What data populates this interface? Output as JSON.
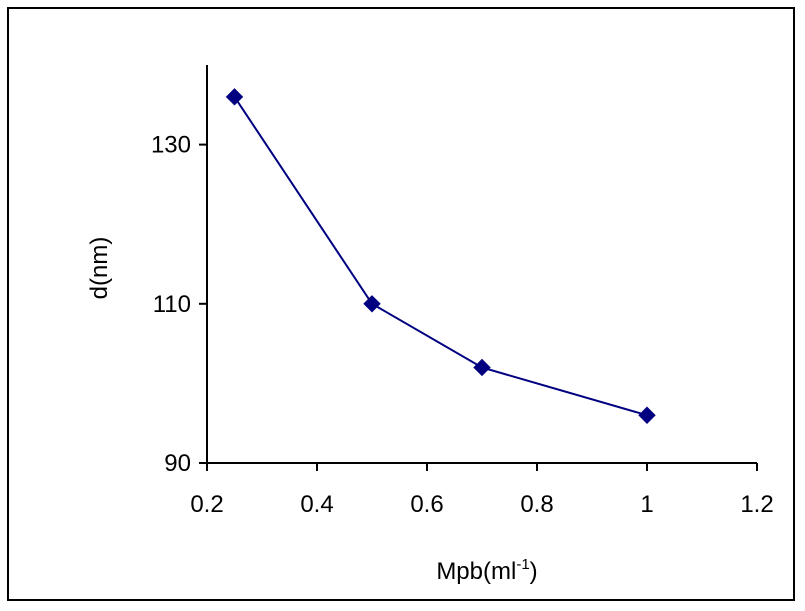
{
  "chart_data": {
    "type": "line",
    "xlabel": {
      "text": "Mpb(ml",
      "sup": "-1",
      "close": ")"
    },
    "ylabel": "d(nm)",
    "xlim": [
      0.2,
      1.2
    ],
    "ylim": [
      90,
      140
    ],
    "xticks": [
      {
        "value": 0.2,
        "label": "0.2"
      },
      {
        "value": 0.4,
        "label": "0.4"
      },
      {
        "value": 0.6,
        "label": "0.6"
      },
      {
        "value": 0.8,
        "label": "0.8"
      },
      {
        "value": 1.0,
        "label": "1"
      },
      {
        "value": 1.2,
        "label": "1.2"
      }
    ],
    "yticks": [
      {
        "value": 90,
        "label": "90"
      },
      {
        "value": 110,
        "label": "110"
      },
      {
        "value": 130,
        "label": "130"
      }
    ],
    "grid": false,
    "legend": "none",
    "series": [
      {
        "color": "#000080",
        "marker": "diamond",
        "x": [
          0.25,
          0.5,
          0.7,
          1.0
        ],
        "y": [
          136,
          110,
          102,
          96
        ]
      }
    ]
  }
}
